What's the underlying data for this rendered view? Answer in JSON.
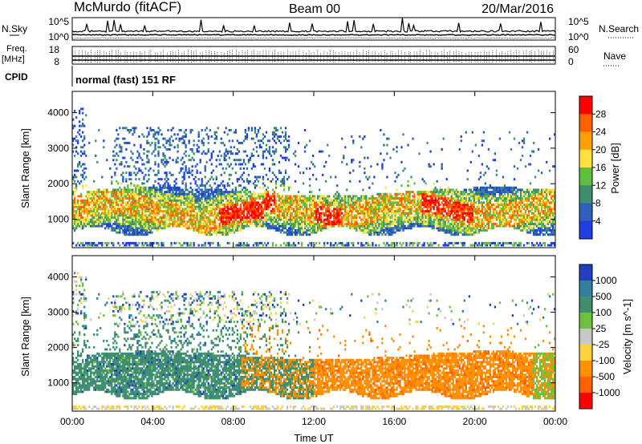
{
  "header": {
    "station": "McMurdo (fitACF)",
    "beam": "Beam 00",
    "date": "20/Mar/2016"
  },
  "left_labels": {
    "nsky": "N.Sky",
    "freq": "Freq.",
    "freq_unit": "[MHz]",
    "cpid": "CPID",
    "nsky_ticks": [
      "10^5",
      "10^0"
    ],
    "freq_ticks": [
      "18",
      "8"
    ]
  },
  "right_labels": {
    "nsearch": "N.Search",
    "nave": "Nave",
    "nsearch_ticks": [
      "10^5",
      "10^0"
    ],
    "nave_ticks": [
      "60",
      "0"
    ]
  },
  "cpid_text": "normal (fast) 151 RF",
  "colors": {
    "power_scale": [
      "#1f3fe0",
      "#2f5fbf",
      "#3f8f6f",
      "#5fbf3f",
      "#ffe040",
      "#ffa000",
      "#ff6000",
      "#ff0000"
    ],
    "velocity_scale": [
      "#2040c0",
      "#3080a0",
      "#3f8f6f",
      "#70c040",
      "#c8c8c8",
      "#ffd040",
      "#ff9000",
      "#ff6000",
      "#ff0000"
    ]
  },
  "chart_data": [
    {
      "type": "heatmap",
      "name": "power",
      "ylabel": "Slant Range [km]",
      "yticks": [
        "1000",
        "2000",
        "3000",
        "4000"
      ],
      "ylim": [
        200,
        4600
      ],
      "colorbar_label": "Power [dB]",
      "colorbar_ticks": [
        "4",
        "8",
        "12",
        "16",
        "20",
        "24",
        "28"
      ]
    },
    {
      "type": "heatmap",
      "name": "velocity",
      "ylabel": "Slant Range [km]",
      "yticks": [
        "1000",
        "2000",
        "3000",
        "4000"
      ],
      "ylim": [
        200,
        4600
      ],
      "xlabel": "Time UT",
      "xticks": [
        "00:00",
        "04:00",
        "08:00",
        "12:00",
        "16:00",
        "20:00",
        "00:00"
      ],
      "colorbar_label": "Velocity [m s^-1]",
      "colorbar_ticks": [
        "1000",
        "500",
        "100",
        "25",
        "-25",
        "-100",
        "-500",
        "-1000"
      ]
    }
  ]
}
